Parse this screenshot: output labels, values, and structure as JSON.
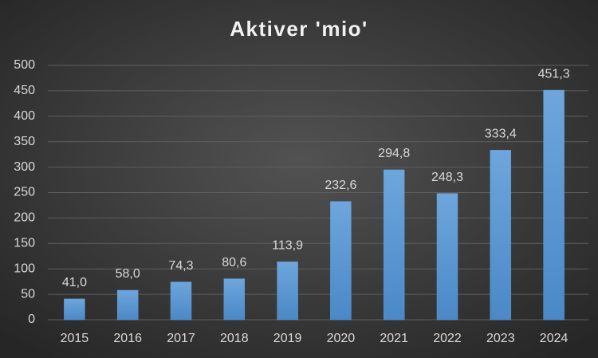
{
  "chart_data": {
    "type": "bar",
    "title": "Aktiver 'mio'",
    "categories": [
      "2015",
      "2016",
      "2017",
      "2018",
      "2019",
      "2020",
      "2021",
      "2022",
      "2023",
      "2024"
    ],
    "values": [
      41.0,
      58.0,
      74.3,
      80.6,
      113.9,
      232.6,
      294.8,
      248.3,
      333.4,
      451.3
    ],
    "value_labels": [
      "41,0",
      "58,0",
      "74,3",
      "80,6",
      "113,9",
      "232,6",
      "294,8",
      "248,3",
      "333,4",
      "451,3"
    ],
    "color": "#5b9bd5",
    "ylim": [
      0,
      500
    ],
    "yticks": [
      0,
      50,
      100,
      150,
      200,
      250,
      300,
      350,
      400,
      450,
      500
    ],
    "grid": true
  }
}
